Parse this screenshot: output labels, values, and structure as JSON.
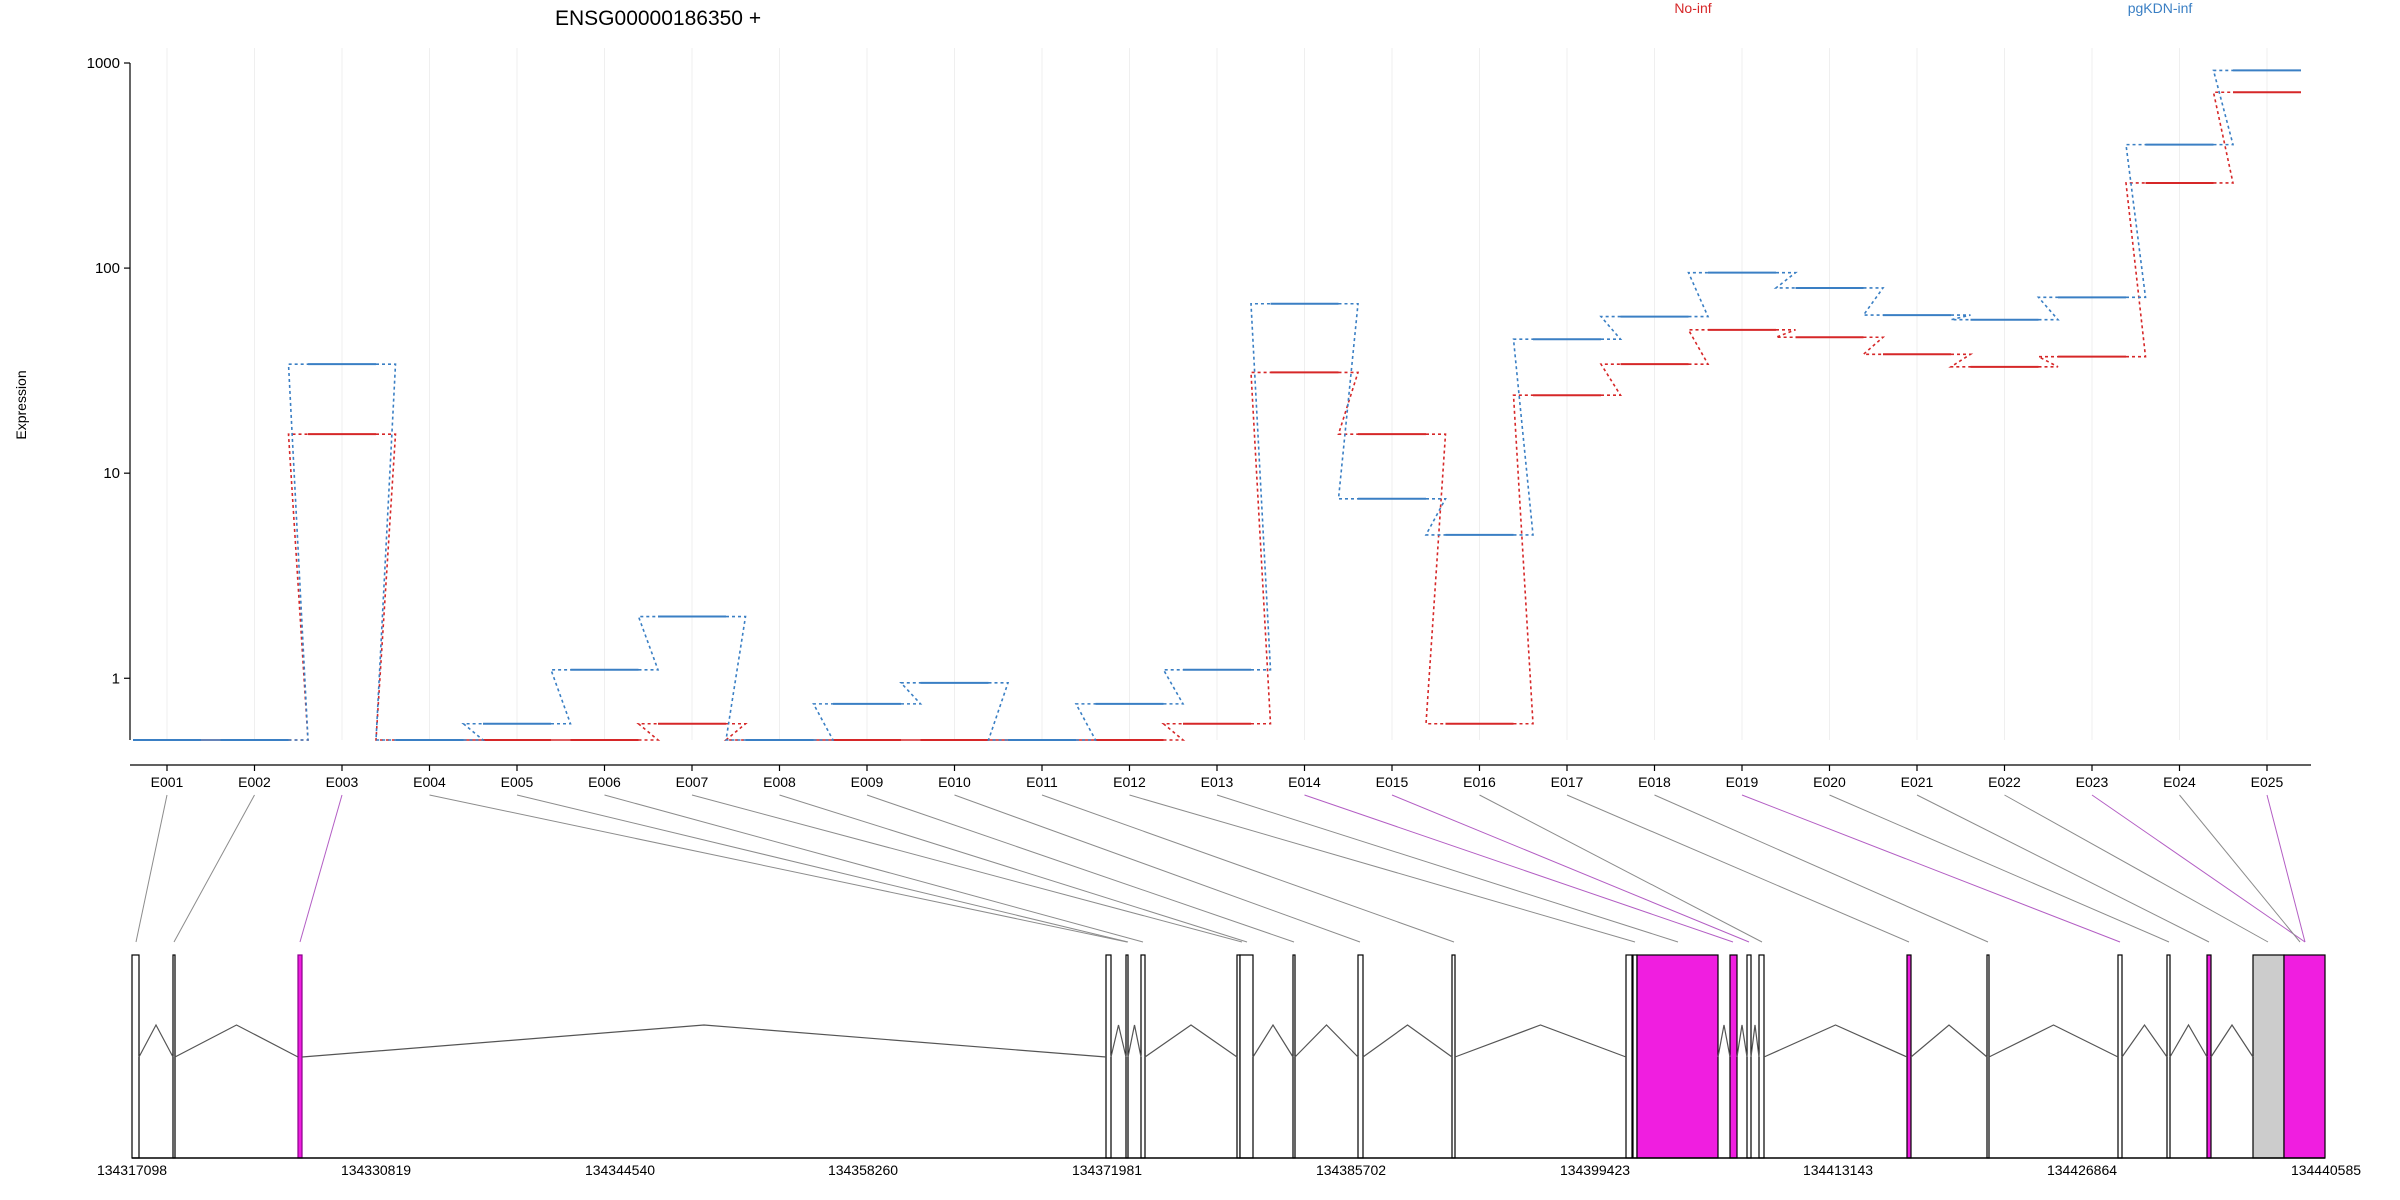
{
  "page_title": "ENSG00000186350 +",
  "ylabel": "Expression",
  "legend": [
    {
      "name": "No-inf",
      "color": "#d62728"
    },
    {
      "name": "pgKDN-inf",
      "color": "#3a7fc4"
    }
  ],
  "chart_data": {
    "type": "line",
    "title": "ENSG00000186350 +",
    "xlabel": "",
    "ylabel": "Expression",
    "y_scale": "log",
    "ylim": [
      0.5,
      1000
    ],
    "y_ticks": [
      1,
      10,
      100,
      1000
    ],
    "y_tick_labels": [
      "1",
      "10",
      "100",
      "1000"
    ],
    "grid": "vertical at exon ticks",
    "legend_position": "top",
    "categories": [
      "E001",
      "E002",
      "E003",
      "E004",
      "E005",
      "E006",
      "E007",
      "E008",
      "E009",
      "E010",
      "E011",
      "E012",
      "E013",
      "E014",
      "E015",
      "E016",
      "E017",
      "E018",
      "E019",
      "E020",
      "E021",
      "E022",
      "E023",
      "E024",
      "E025"
    ],
    "series": [
      {
        "name": "No-inf",
        "color": "#d62728",
        "values": [
          0.5,
          0.5,
          15.5,
          0.5,
          0.5,
          0.5,
          0.6,
          0.5,
          0.5,
          0.5,
          0.5,
          0.5,
          0.6,
          31,
          15.5,
          0.6,
          24,
          34,
          50,
          46,
          38,
          33,
          37,
          260,
          720
        ]
      },
      {
        "name": "pgKDN-inf",
        "color": "#3a7fc4",
        "values": [
          0.5,
          0.5,
          34,
          0.5,
          0.6,
          1.1,
          2.0,
          0.5,
          0.75,
          0.95,
          0.5,
          0.75,
          1.1,
          67,
          7.5,
          5.0,
          45,
          58,
          95,
          80,
          59,
          56,
          72,
          400,
          920
        ]
      }
    ]
  },
  "gene_model": {
    "coordinate_labels": [
      "134317098",
      "134330819",
      "134344540",
      "134358260",
      "134371981",
      "134385702",
      "134399423",
      "134413143",
      "134426864",
      "134440585"
    ],
    "exon_fill_colors": {
      "normal": "#ffffff",
      "significant": "#f01ee0",
      "utr": "#cccccc"
    },
    "connector_colors": {
      "normal": "#8c8c8c",
      "significant": "#b35ec4"
    }
  }
}
